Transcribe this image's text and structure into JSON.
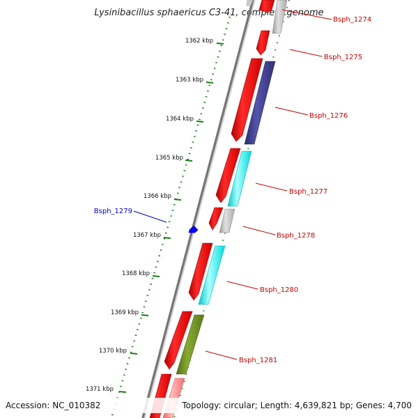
{
  "title": "Lysinibacillus sphaericus C3-41, complete genome",
  "ticks": [
    "1362 kbp",
    "1363 kbp",
    "1364 kbp",
    "1365 kbp",
    "1366 kbp",
    "1367 kbp",
    "1368 kbp",
    "1369 kbp",
    "1370 kbp",
    "1371 kbp"
  ],
  "genes": [
    {
      "name": "Bsph_1274",
      "color": "#cc0000"
    },
    {
      "name": "Bsph_1275",
      "color": "#cc0000"
    },
    {
      "name": "Bsph_1276",
      "color": "#cc0000"
    },
    {
      "name": "Bsph_1277",
      "color": "#cc0000"
    },
    {
      "name": "Bsph_1278",
      "color": "#cc0000"
    },
    {
      "name": "Bsph_1279",
      "color": "#0000cc"
    },
    {
      "name": "Bsph_1280",
      "color": "#cc0000"
    },
    {
      "name": "Bsph_1281",
      "color": "#cc0000"
    }
  ],
  "footer": {
    "accession": "Accession: NC_010382",
    "summary": "Topology: circular; Length: 4,639,821 bp; Genes: 4,700"
  },
  "colors": {
    "cds_forward": "#ff0000",
    "cog_grey": "#bbbbbb",
    "cog_navy": "#3a3a8c",
    "cog_cyan": "#00ffff",
    "cog_olive": "#6b8e23",
    "cog_pink": "#ff8888",
    "backbone": "#777777",
    "tick_green": "#1a7a1a",
    "rna_blue": "#0000ff"
  }
}
